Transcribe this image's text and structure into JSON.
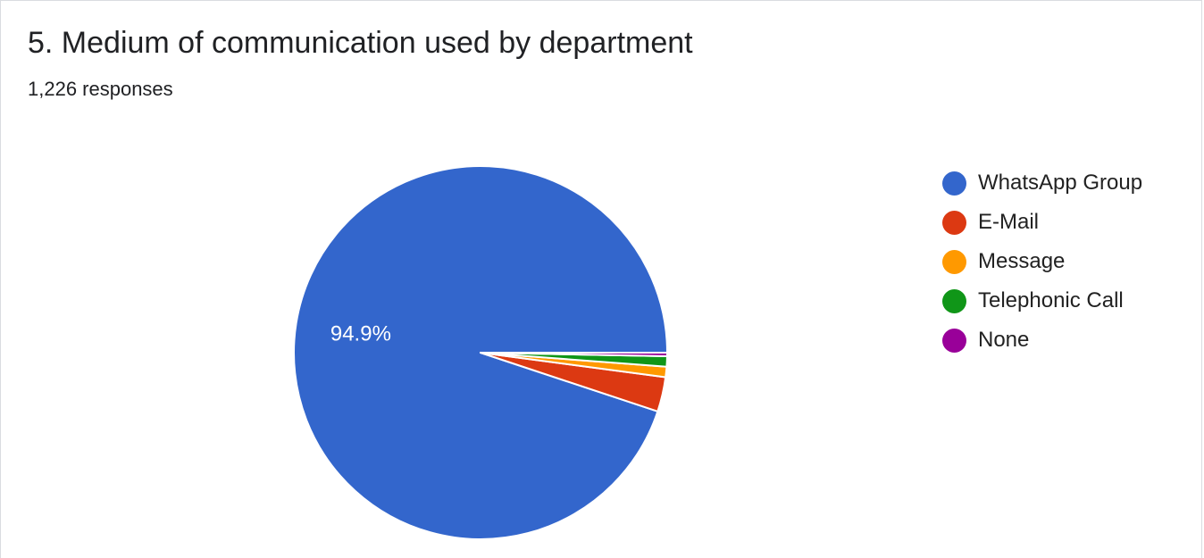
{
  "header": {
    "title": "5. Medium of communication used by department",
    "responses": "1,226 responses"
  },
  "chart_data": {
    "type": "pie",
    "title": "5. Medium of communication used by department",
    "subtitle": "1,226 responses",
    "categories": [
      "WhatsApp Group",
      "E-Mail",
      "Message",
      "Telephonic Call",
      "None"
    ],
    "values": [
      94.9,
      3.0,
      0.9,
      0.9,
      0.3
    ],
    "unit": "%",
    "colors": [
      "#3366cc",
      "#dc3912",
      "#ff9900",
      "#109618",
      "#990099"
    ],
    "data_labels": [
      "94.9%",
      "",
      "",
      "",
      ""
    ],
    "legend_position": "right",
    "start_angle": "3 o'clock",
    "direction": "counter-clockwise"
  }
}
